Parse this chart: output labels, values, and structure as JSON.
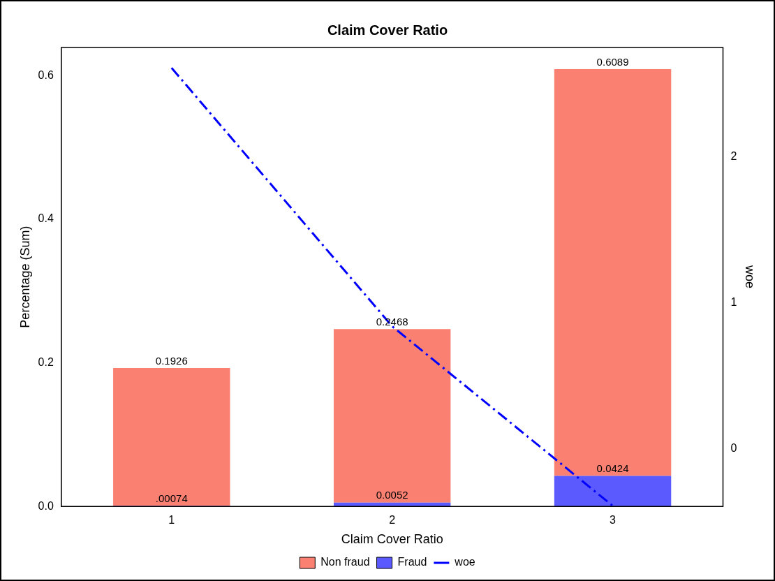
{
  "chart_data": {
    "type": "bar",
    "title": "Claim Cover Ratio",
    "xlabel": "Claim Cover Ratio",
    "ylabel": "Percentage (Sum)",
    "y2label": "woe",
    "categories": [
      "1",
      "2",
      "3"
    ],
    "stacked": true,
    "series": [
      {
        "name": "Fraud",
        "color": "#5a5aff",
        "values": [
          0.00074,
          0.0052,
          0.0424
        ],
        "value_labels": [
          ".00074",
          "0.0052",
          "0.0424"
        ]
      },
      {
        "name": "Non fraud",
        "color": "#fa8072",
        "values": [
          0.1919,
          0.2416,
          0.5665
        ]
      },
      {
        "name": "woe",
        "type": "line",
        "axis": "y2",
        "color": "#0000ff",
        "values": [
          2.61,
          0.84,
          -0.39
        ],
        "line_style": "dashed",
        "marker": "none"
      }
    ],
    "totals": [
      "0.1926",
      "0.2468",
      "0.6089"
    ],
    "ylim": [
      0,
      0.639
    ],
    "yticks": [
      {
        "value": 0,
        "label": "0.0"
      },
      0.2,
      0.4,
      0.6
    ],
    "y2lim": [
      -0.394,
      2.75
    ],
    "y2ticks": [
      0,
      1,
      2
    ],
    "grid": false,
    "legend": "bottom"
  }
}
